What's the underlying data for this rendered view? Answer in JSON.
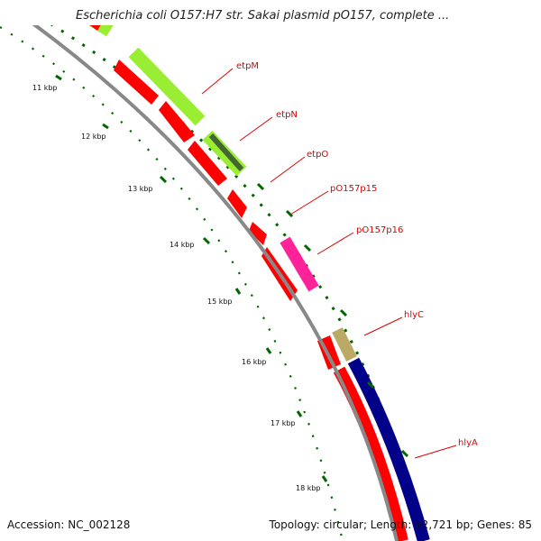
{
  "title": "Escherichia coli O157:H7 str. Sakai plasmid pO157, complete ...",
  "footer": {
    "accession": "Accession: NC_002128",
    "summary": "Topology: circular; Length: 92,721 bp; Genes: 85"
  },
  "scale_labels": [
    "11 kbp",
    "12 kbp",
    "13 kbp",
    "14 kbp",
    "15 kbp",
    "16 kbp",
    "17 kbp",
    "18 kbp"
  ],
  "genes": [
    {
      "name": "etpM"
    },
    {
      "name": "etpN"
    },
    {
      "name": "etpO"
    },
    {
      "name": "pO157p15"
    },
    {
      "name": "pO157p16"
    },
    {
      "name": "hlyC"
    },
    {
      "name": "hlyA"
    }
  ],
  "colors": {
    "cds": "#ff0000",
    "etp_feature": "#99ee33",
    "pO157p16_feature": "#ff2299",
    "hlyC_feature": "#bbaa66",
    "hlyA_feature": "#000088",
    "backbone": "#888888",
    "ticks": "#006600",
    "labels": "#dd0000"
  }
}
